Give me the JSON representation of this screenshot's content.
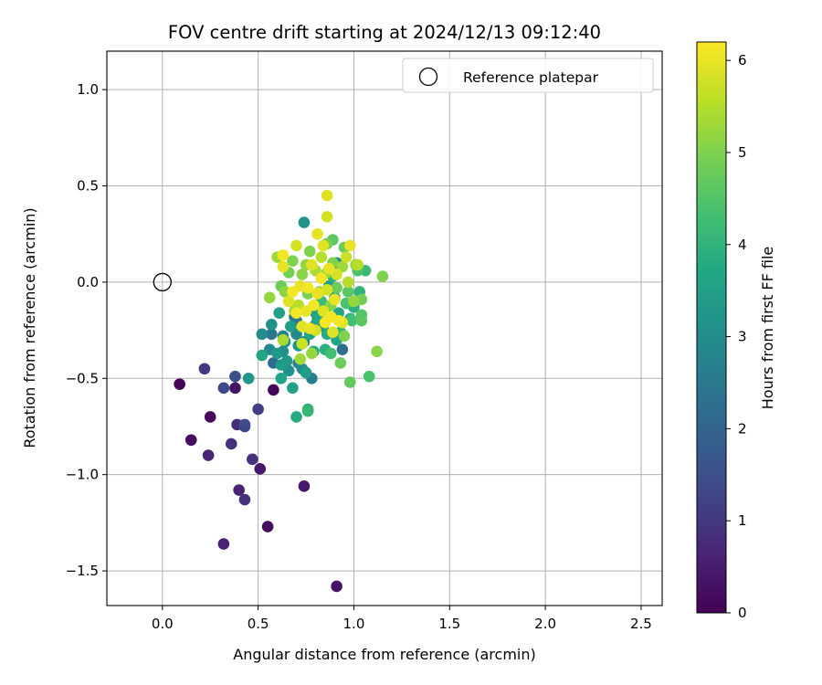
{
  "chart_data": {
    "type": "scatter",
    "title": "FOV centre drift starting at 2024/12/13 09:12:40",
    "xlabel": "Angular distance from reference (arcmin)",
    "ylabel": "Rotation from reference (arcmin)",
    "xlim": [
      -0.29,
      2.61
    ],
    "ylim": [
      -1.68,
      1.2
    ],
    "xticks": [
      0.0,
      0.5,
      1.0,
      1.5,
      2.0,
      2.5
    ],
    "xtick_labels": [
      "0.0",
      "0.5",
      "1.0",
      "1.5",
      "2.0",
      "2.5"
    ],
    "yticks": [
      1.0,
      0.5,
      0.0,
      -0.5,
      -1.0,
      -1.5
    ],
    "ytick_labels": [
      "1.0",
      "0.5",
      "0.0",
      "−0.5",
      "−1.0",
      "−1.5"
    ],
    "grid": true,
    "legend": {
      "placement": "top-right",
      "entries": [
        "Reference platepar"
      ]
    },
    "reference_point": {
      "x": 0.0,
      "y": 0.0,
      "marker": "open-circle",
      "color": "#000000"
    },
    "colorbar": {
      "label": "Hours from first FF file",
      "range": [
        0,
        6.2
      ],
      "ticks": [
        0,
        1,
        2,
        3,
        4,
        5,
        6
      ],
      "colormap": "viridis"
    },
    "series": [
      {
        "points": [
          [
            0.09,
            -0.53,
            0.05
          ],
          [
            0.15,
            -0.82,
            0.2
          ],
          [
            0.25,
            -0.7,
            0.15
          ],
          [
            0.24,
            -0.9,
            0.7
          ],
          [
            0.22,
            -0.45,
            1.0
          ],
          [
            0.32,
            -0.55,
            1.3
          ],
          [
            0.36,
            -0.84,
            0.9
          ],
          [
            0.39,
            -0.74,
            0.8
          ],
          [
            0.4,
            -1.08,
            0.6
          ],
          [
            0.38,
            -0.55,
            0.3
          ],
          [
            0.38,
            -0.49,
            1.5
          ],
          [
            0.43,
            -0.74,
            1.4
          ],
          [
            0.43,
            -0.75,
            1.2
          ],
          [
            0.43,
            -1.13,
            0.9
          ],
          [
            0.32,
            -1.36,
            0.6
          ],
          [
            0.47,
            -0.92,
            0.9
          ],
          [
            0.5,
            -0.66,
            1.1
          ],
          [
            0.51,
            -0.97,
            0.4
          ],
          [
            0.55,
            -1.27,
            0.2
          ],
          [
            0.58,
            -0.56,
            0.1
          ],
          [
            0.74,
            -1.06,
            0.4
          ],
          [
            0.91,
            -1.58,
            0.3
          ],
          [
            0.45,
            -0.5,
            3.2
          ],
          [
            0.52,
            -0.38,
            3.6
          ],
          [
            0.52,
            -0.27,
            3.0
          ],
          [
            0.56,
            -0.35,
            2.9
          ],
          [
            0.57,
            -0.27,
            2.4
          ],
          [
            0.57,
            -0.22,
            3.1
          ],
          [
            0.58,
            -0.42,
            2.1
          ],
          [
            0.6,
            -0.37,
            3.3
          ],
          [
            0.61,
            -0.16,
            3.5
          ],
          [
            0.62,
            -0.43,
            3.4
          ],
          [
            0.62,
            -0.5,
            3.6
          ],
          [
            0.63,
            -0.36,
            3.0
          ],
          [
            0.63,
            -0.28,
            2.7
          ],
          [
            0.64,
            -0.31,
            3.2
          ],
          [
            0.65,
            -0.41,
            3.3
          ],
          [
            0.66,
            -0.46,
            3.1
          ],
          [
            0.67,
            -0.23,
            3.4
          ],
          [
            0.68,
            -0.55,
            3.5
          ],
          [
            0.69,
            -0.18,
            2.6
          ],
          [
            0.7,
            -0.2,
            2.3
          ],
          [
            0.7,
            -0.27,
            2.9
          ],
          [
            0.7,
            -0.7,
            3.8
          ],
          [
            0.71,
            -0.42,
            2.6
          ],
          [
            0.71,
            -0.33,
            3.3
          ],
          [
            0.73,
            -0.45,
            3.0
          ],
          [
            0.74,
            -0.31,
            2.8
          ],
          [
            0.75,
            -0.47,
            3.4
          ],
          [
            0.74,
            0.31,
            3.1
          ],
          [
            0.76,
            -0.67,
            4.1
          ],
          [
            0.76,
            -0.66,
            4.0
          ],
          [
            0.77,
            -0.27,
            3.6
          ],
          [
            0.78,
            -0.5,
            2.6
          ],
          [
            0.79,
            -0.36,
            3.7
          ],
          [
            0.8,
            -0.22,
            3.2
          ],
          [
            0.8,
            -0.16,
            3.5
          ],
          [
            0.81,
            -0.19,
            3.7
          ],
          [
            0.82,
            -0.12,
            3.9
          ],
          [
            0.83,
            -0.1,
            4.2
          ],
          [
            0.84,
            -0.23,
            3.1
          ],
          [
            0.85,
            -0.15,
            3.4
          ],
          [
            0.85,
            -0.35,
            3.9
          ],
          [
            0.86,
            -0.27,
            3.8
          ],
          [
            0.87,
            -0.02,
            3.5
          ],
          [
            0.88,
            -0.37,
            4.3
          ],
          [
            0.89,
            0.03,
            4.0
          ],
          [
            0.9,
            -0.08,
            3.3
          ],
          [
            0.91,
            0.1,
            2.9
          ],
          [
            0.91,
            -0.3,
            3.6
          ],
          [
            0.92,
            -0.16,
            3.6
          ],
          [
            0.93,
            -0.26,
            4.1
          ],
          [
            0.94,
            -0.35,
            2.2
          ],
          [
            0.96,
            -0.11,
            4.4
          ],
          [
            0.97,
            -0.05,
            4.6
          ],
          [
            0.98,
            -0.19,
            4.0
          ],
          [
            0.99,
            -0.2,
            4.3
          ],
          [
            1.0,
            -0.13,
            3.9
          ],
          [
            1.02,
            0.06,
            4.4
          ],
          [
            1.03,
            -0.05,
            4.0
          ],
          [
            1.04,
            -0.17,
            4.5
          ],
          [
            1.06,
            0.06,
            4.2
          ],
          [
            1.08,
            -0.49,
            4.4
          ],
          [
            0.93,
            -0.42,
            4.8
          ],
          [
            0.98,
            -0.52,
            4.7
          ],
          [
            0.95,
            0.18,
            4.8
          ],
          [
            0.89,
            0.22,
            4.6
          ],
          [
            0.86,
            0.2,
            4.9
          ],
          [
            1.01,
            0.09,
            5.2
          ],
          [
            1.04,
            -0.09,
            4.9
          ],
          [
            1.04,
            -0.2,
            4.6
          ],
          [
            1.12,
            -0.36,
            5.1
          ],
          [
            1.15,
            0.03,
            5.0
          ],
          [
            0.56,
            -0.08,
            5.2
          ],
          [
            0.6,
            0.13,
            5.3
          ],
          [
            0.62,
            -0.02,
            4.8
          ],
          [
            0.63,
            -0.3,
            5.4
          ],
          [
            0.64,
            -0.05,
            5.1
          ],
          [
            0.66,
            0.05,
            4.9
          ],
          [
            0.68,
            0.11,
            5.0
          ],
          [
            0.69,
            -0.15,
            5.3
          ],
          [
            0.71,
            -0.12,
            5.5
          ],
          [
            0.72,
            -0.4,
            5.3
          ],
          [
            0.73,
            0.04,
            5.1
          ],
          [
            0.75,
            0.09,
            5.2
          ],
          [
            0.76,
            -0.06,
            4.9
          ],
          [
            0.77,
            0.16,
            5.0
          ],
          [
            0.78,
            -0.37,
            5.2
          ],
          [
            0.8,
            0.06,
            5.4
          ],
          [
            0.82,
            -0.05,
            5.3
          ],
          [
            0.83,
            0.13,
            5.5
          ],
          [
            0.86,
            0.05,
            5.2
          ],
          [
            0.88,
            -0.12,
            5.1
          ],
          [
            0.89,
            0.1,
            5.0
          ],
          [
            0.91,
            -0.03,
            4.8
          ],
          [
            0.94,
            0.08,
            5.3
          ],
          [
            0.95,
            -0.28,
            5.0
          ],
          [
            0.97,
            0.0,
            5.5
          ],
          [
            1.0,
            -0.1,
            5.2
          ],
          [
            1.02,
            0.09,
            5.5
          ],
          [
            0.86,
            0.45,
            5.9
          ],
          [
            0.86,
            0.34,
            5.8
          ],
          [
            0.81,
            0.25,
            6.0
          ],
          [
            0.84,
            0.19,
            5.9
          ],
          [
            0.98,
            0.19,
            6.0
          ],
          [
            0.63,
            0.14,
            6.1
          ],
          [
            0.63,
            0.08,
            6.0
          ],
          [
            0.66,
            -0.1,
            5.9
          ],
          [
            0.7,
            0.19,
            5.8
          ],
          [
            0.7,
            -0.16,
            6.1
          ],
          [
            0.72,
            -0.02,
            6.0
          ],
          [
            0.73,
            -0.32,
            5.7
          ],
          [
            0.76,
            -0.03,
            6.1
          ],
          [
            0.77,
            -0.24,
            6.0
          ],
          [
            0.78,
            0.09,
            5.9
          ],
          [
            0.79,
            -0.12,
            6.1
          ],
          [
            0.8,
            -0.25,
            5.8
          ],
          [
            0.81,
            -0.06,
            6.0
          ],
          [
            0.83,
            0.02,
            6.1
          ],
          [
            0.84,
            -0.15,
            5.9
          ],
          [
            0.85,
            -0.21,
            6.1
          ],
          [
            0.86,
            -0.04,
            5.8
          ],
          [
            0.87,
            0.07,
            6.0
          ],
          [
            0.88,
            -0.18,
            6.1
          ],
          [
            0.89,
            -0.26,
            5.9
          ],
          [
            0.9,
            -0.09,
            6.0
          ],
          [
            0.91,
            0.04,
            5.8
          ],
          [
            0.92,
            -0.2,
            6.1
          ],
          [
            0.94,
            -0.21,
            5.9
          ],
          [
            0.96,
            0.13,
            5.7
          ],
          [
            0.75,
            -0.15,
            6.0
          ],
          [
            0.68,
            -0.05,
            6.1
          ],
          [
            0.73,
            -0.23,
            5.9
          ]
        ]
      }
    ]
  }
}
